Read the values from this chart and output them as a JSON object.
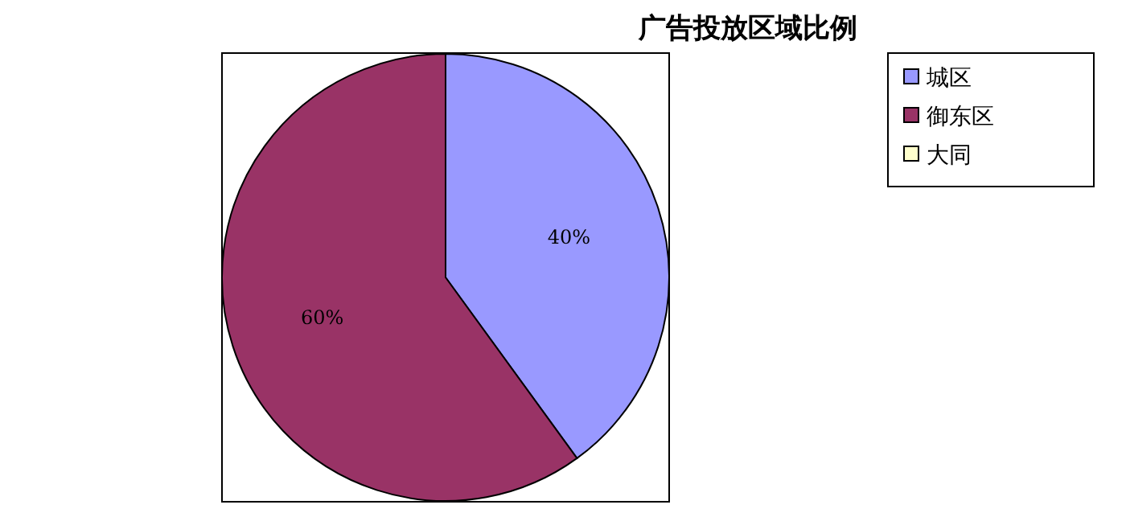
{
  "chart_data": {
    "type": "pie",
    "title": "广告投放区域比例",
    "categories": [
      "城区",
      "御东区",
      "大同"
    ],
    "values": [
      40,
      60,
      0
    ],
    "colors": [
      "#9999ff",
      "#993366",
      "#ffffcc"
    ],
    "value_labels": [
      "40%",
      "60%",
      null
    ],
    "legend": "top right"
  }
}
